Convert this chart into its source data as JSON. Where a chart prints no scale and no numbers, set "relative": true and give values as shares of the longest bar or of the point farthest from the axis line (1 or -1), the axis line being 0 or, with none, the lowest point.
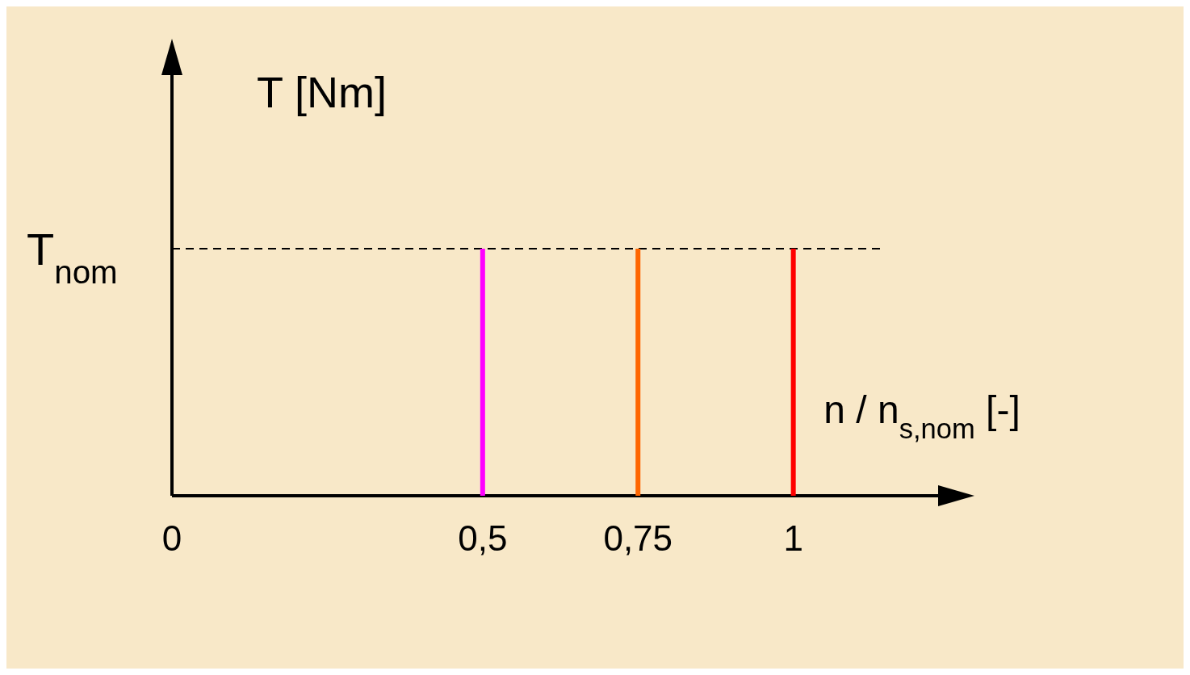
{
  "chart_data": {
    "type": "line",
    "relative": true,
    "ylabel": "T  [Nm]",
    "xlabel": "n / n$_{s,nom}$ [-]",
    "xlim": [
      0,
      1.233
    ],
    "xticks": [
      0,
      {
        "value": 0.5,
        "label": "0,5"
      },
      {
        "value": 0.75,
        "label": "0,75"
      },
      1
    ],
    "series": [
      {
        "color": "#ff00ff",
        "x": [
          0.5,
          0.5
        ],
        "values": [
          0,
          1
        ]
      },
      {
        "color": "#ff6600",
        "x": [
          0.75,
          0.75
        ],
        "values": [
          0,
          1
        ]
      },
      {
        "color": "#ff0000",
        "x": [
          1,
          1
        ],
        "values": [
          0,
          1
        ]
      }
    ],
    "ref_lines": [
      {
        "axis": "y",
        "value": 1,
        "label": "T$_{nom}$",
        "line_style": "dashed",
        "color": "#000000"
      }
    ],
    "line_style": "solid"
  }
}
